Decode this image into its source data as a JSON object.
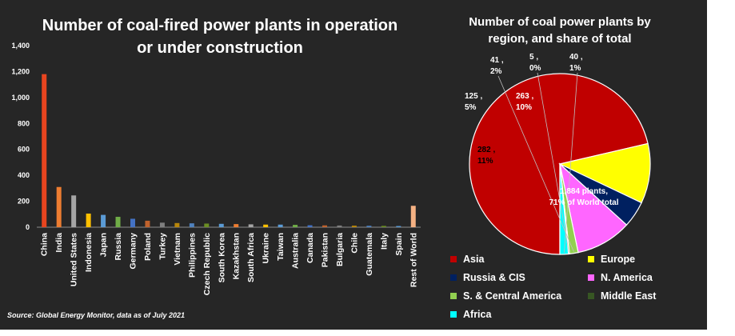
{
  "source_note": "Source: Global Energy Monitor, data as of July 2021",
  "chart_data": [
    {
      "type": "bar",
      "title": "Number of coal-fired power plants in operation or under construction",
      "xlabel": "",
      "ylabel": "",
      "ylim": [
        0,
        1400
      ],
      "yticks": [
        "0",
        "200",
        "400",
        "600",
        "800",
        "1,000",
        "1,200",
        "1,400"
      ],
      "grid": false,
      "categories": [
        "China",
        "India",
        "United States",
        "Indonesia",
        "Japan",
        "Russia",
        "Germany",
        "Poland",
        "Turkey",
        "Vietnam",
        "Philippines",
        "Czech Republic",
        "South Korea",
        "Kazakhstan",
        "South Africa",
        "Ukraine",
        "Taiwan",
        "Australia",
        "Canada",
        "Pakistan",
        "Bulgaria",
        "Chile",
        "Guatemala",
        "Italy",
        "Spain",
        "Rest of World"
      ],
      "values": [
        1180,
        310,
        245,
        105,
        95,
        80,
        65,
        50,
        35,
        32,
        30,
        28,
        26,
        24,
        22,
        20,
        20,
        18,
        15,
        14,
        13,
        12,
        11,
        10,
        9,
        165
      ],
      "colors": [
        "#e8451f",
        "#ed7d31",
        "#a5a5a5",
        "#ffc000",
        "#5b9bd5",
        "#70ad47",
        "#4472c4",
        "#c0622d",
        "#7f7f7f",
        "#b8860b",
        "#4f81bd",
        "#6b8e23",
        "#5b9bd5",
        "#ed7d31",
        "#a5a5a5",
        "#ffc000",
        "#5b9bd5",
        "#70ad47",
        "#4472c4",
        "#c0622d",
        "#7f7f7f",
        "#b8860b",
        "#4f81bd",
        "#6b8e23",
        "#5b9bd5",
        "#f4b183"
      ]
    },
    {
      "type": "pie",
      "title": "Number of coal power plants by region, and share of total",
      "legend": "bottom",
      "slices": [
        {
          "name": "Asia",
          "value": 1884,
          "share_label": "71% of World total",
          "label_line1": "1,884  plants,",
          "label_line2": "71% of World total",
          "color": "#c00000",
          "label_color": "#ffffff"
        },
        {
          "name": "Europe",
          "value": 282,
          "label_line1": "282 ,",
          "label_line2": "11%",
          "color": "#ffff00",
          "label_color": "#000000"
        },
        {
          "name": "Russia & CIS",
          "value": 125,
          "label_line1": "125 ,",
          "label_line2": "5%",
          "color": "#002060",
          "label_color": "#ffffff"
        },
        {
          "name": "N. America",
          "value": 263,
          "label_line1": "263 ,",
          "label_line2": "10%",
          "color": "#ff66ff",
          "label_color": "#ffffff"
        },
        {
          "name": "S. & Central America",
          "value": 41,
          "label_line1": "41 ,",
          "label_line2": "2%",
          "color": "#92d050",
          "label_color": "#ffffff"
        },
        {
          "name": "Middle East",
          "value": 5,
          "label_line1": "5 ,",
          "label_line2": "0%",
          "color": "#375623",
          "label_color": "#ffffff"
        },
        {
          "name": "Africa",
          "value": 40,
          "label_line1": "40 ,",
          "label_line2": "1%",
          "color": "#00ffff",
          "label_color": "#ffffff"
        }
      ],
      "legend_order": [
        "Asia",
        "Europe",
        "Russia & CIS",
        "N. America",
        "S. & Central America",
        "Middle East",
        "Africa"
      ]
    }
  ]
}
